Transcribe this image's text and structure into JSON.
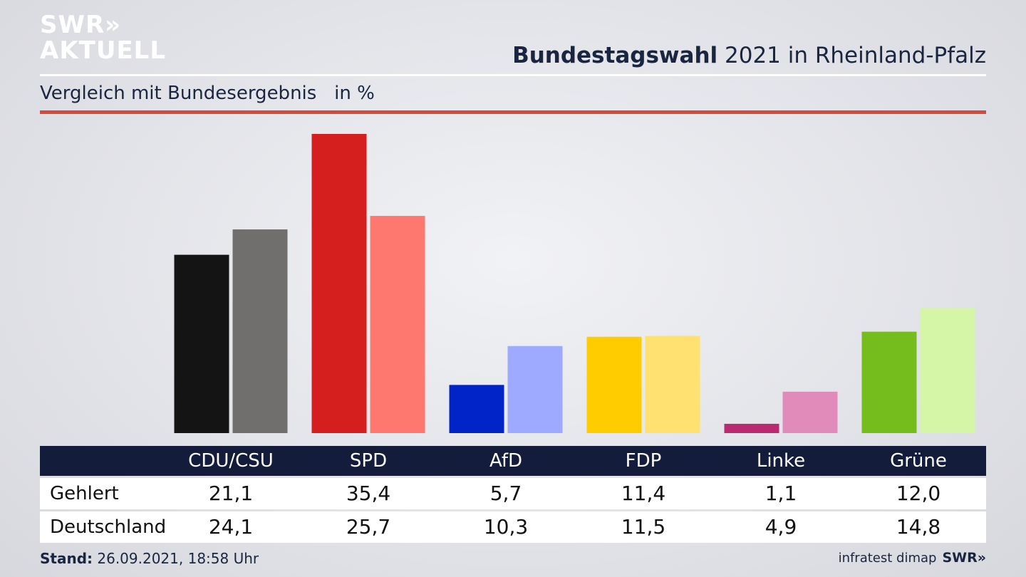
{
  "logo": {
    "line1": "SWR»",
    "line2": "AKTUELL"
  },
  "header": {
    "title_bold": "Bundestagswahl",
    "title_rest": " 2021 in Rheinland-Pfalz",
    "subtitle": "Vergleich mit Bundesergebnis   in %"
  },
  "colors": {
    "accent_rule": "#d7493a",
    "table_header": "#141c3c"
  },
  "chart_data": {
    "type": "bar",
    "title": "Bundestagswahl 2021 in Rheinland-Pfalz",
    "subtitle": "Vergleich mit Bundesergebnis   in %",
    "categories": [
      "CDU/CSU",
      "SPD",
      "AfD",
      "FDP",
      "Linke",
      "Grüne"
    ],
    "series": [
      {
        "name": "Gehlert",
        "values": [
          21.1,
          35.4,
          5.7,
          11.4,
          1.1,
          12.0
        ],
        "labels": [
          "21,1",
          "35,4",
          "5,7",
          "11,4",
          "1,1",
          "12,0"
        ],
        "colors": [
          "#141414",
          "#d51e1e",
          "#0024c8",
          "#ffcc00",
          "#b92a70",
          "#75bd1c"
        ]
      },
      {
        "name": "Deutschland",
        "values": [
          24.1,
          25.7,
          10.3,
          11.5,
          4.9,
          14.8
        ],
        "labels": [
          "24,1",
          "25,7",
          "10,3",
          "11,5",
          "4,9",
          "14,8"
        ],
        "colors": [
          "#706f6d",
          "#ff7870",
          "#9eaaff",
          "#ffe172",
          "#e08bba",
          "#d4f6a6"
        ]
      }
    ],
    "ylim": [
      0,
      35.4
    ],
    "grid": false,
    "legend": "table-below"
  },
  "footer": {
    "stand_label": "Stand:",
    "stand_value": " 26.09.2021, 18:58 Uhr",
    "source": "infratest dimap",
    "brand": "SWR»"
  }
}
